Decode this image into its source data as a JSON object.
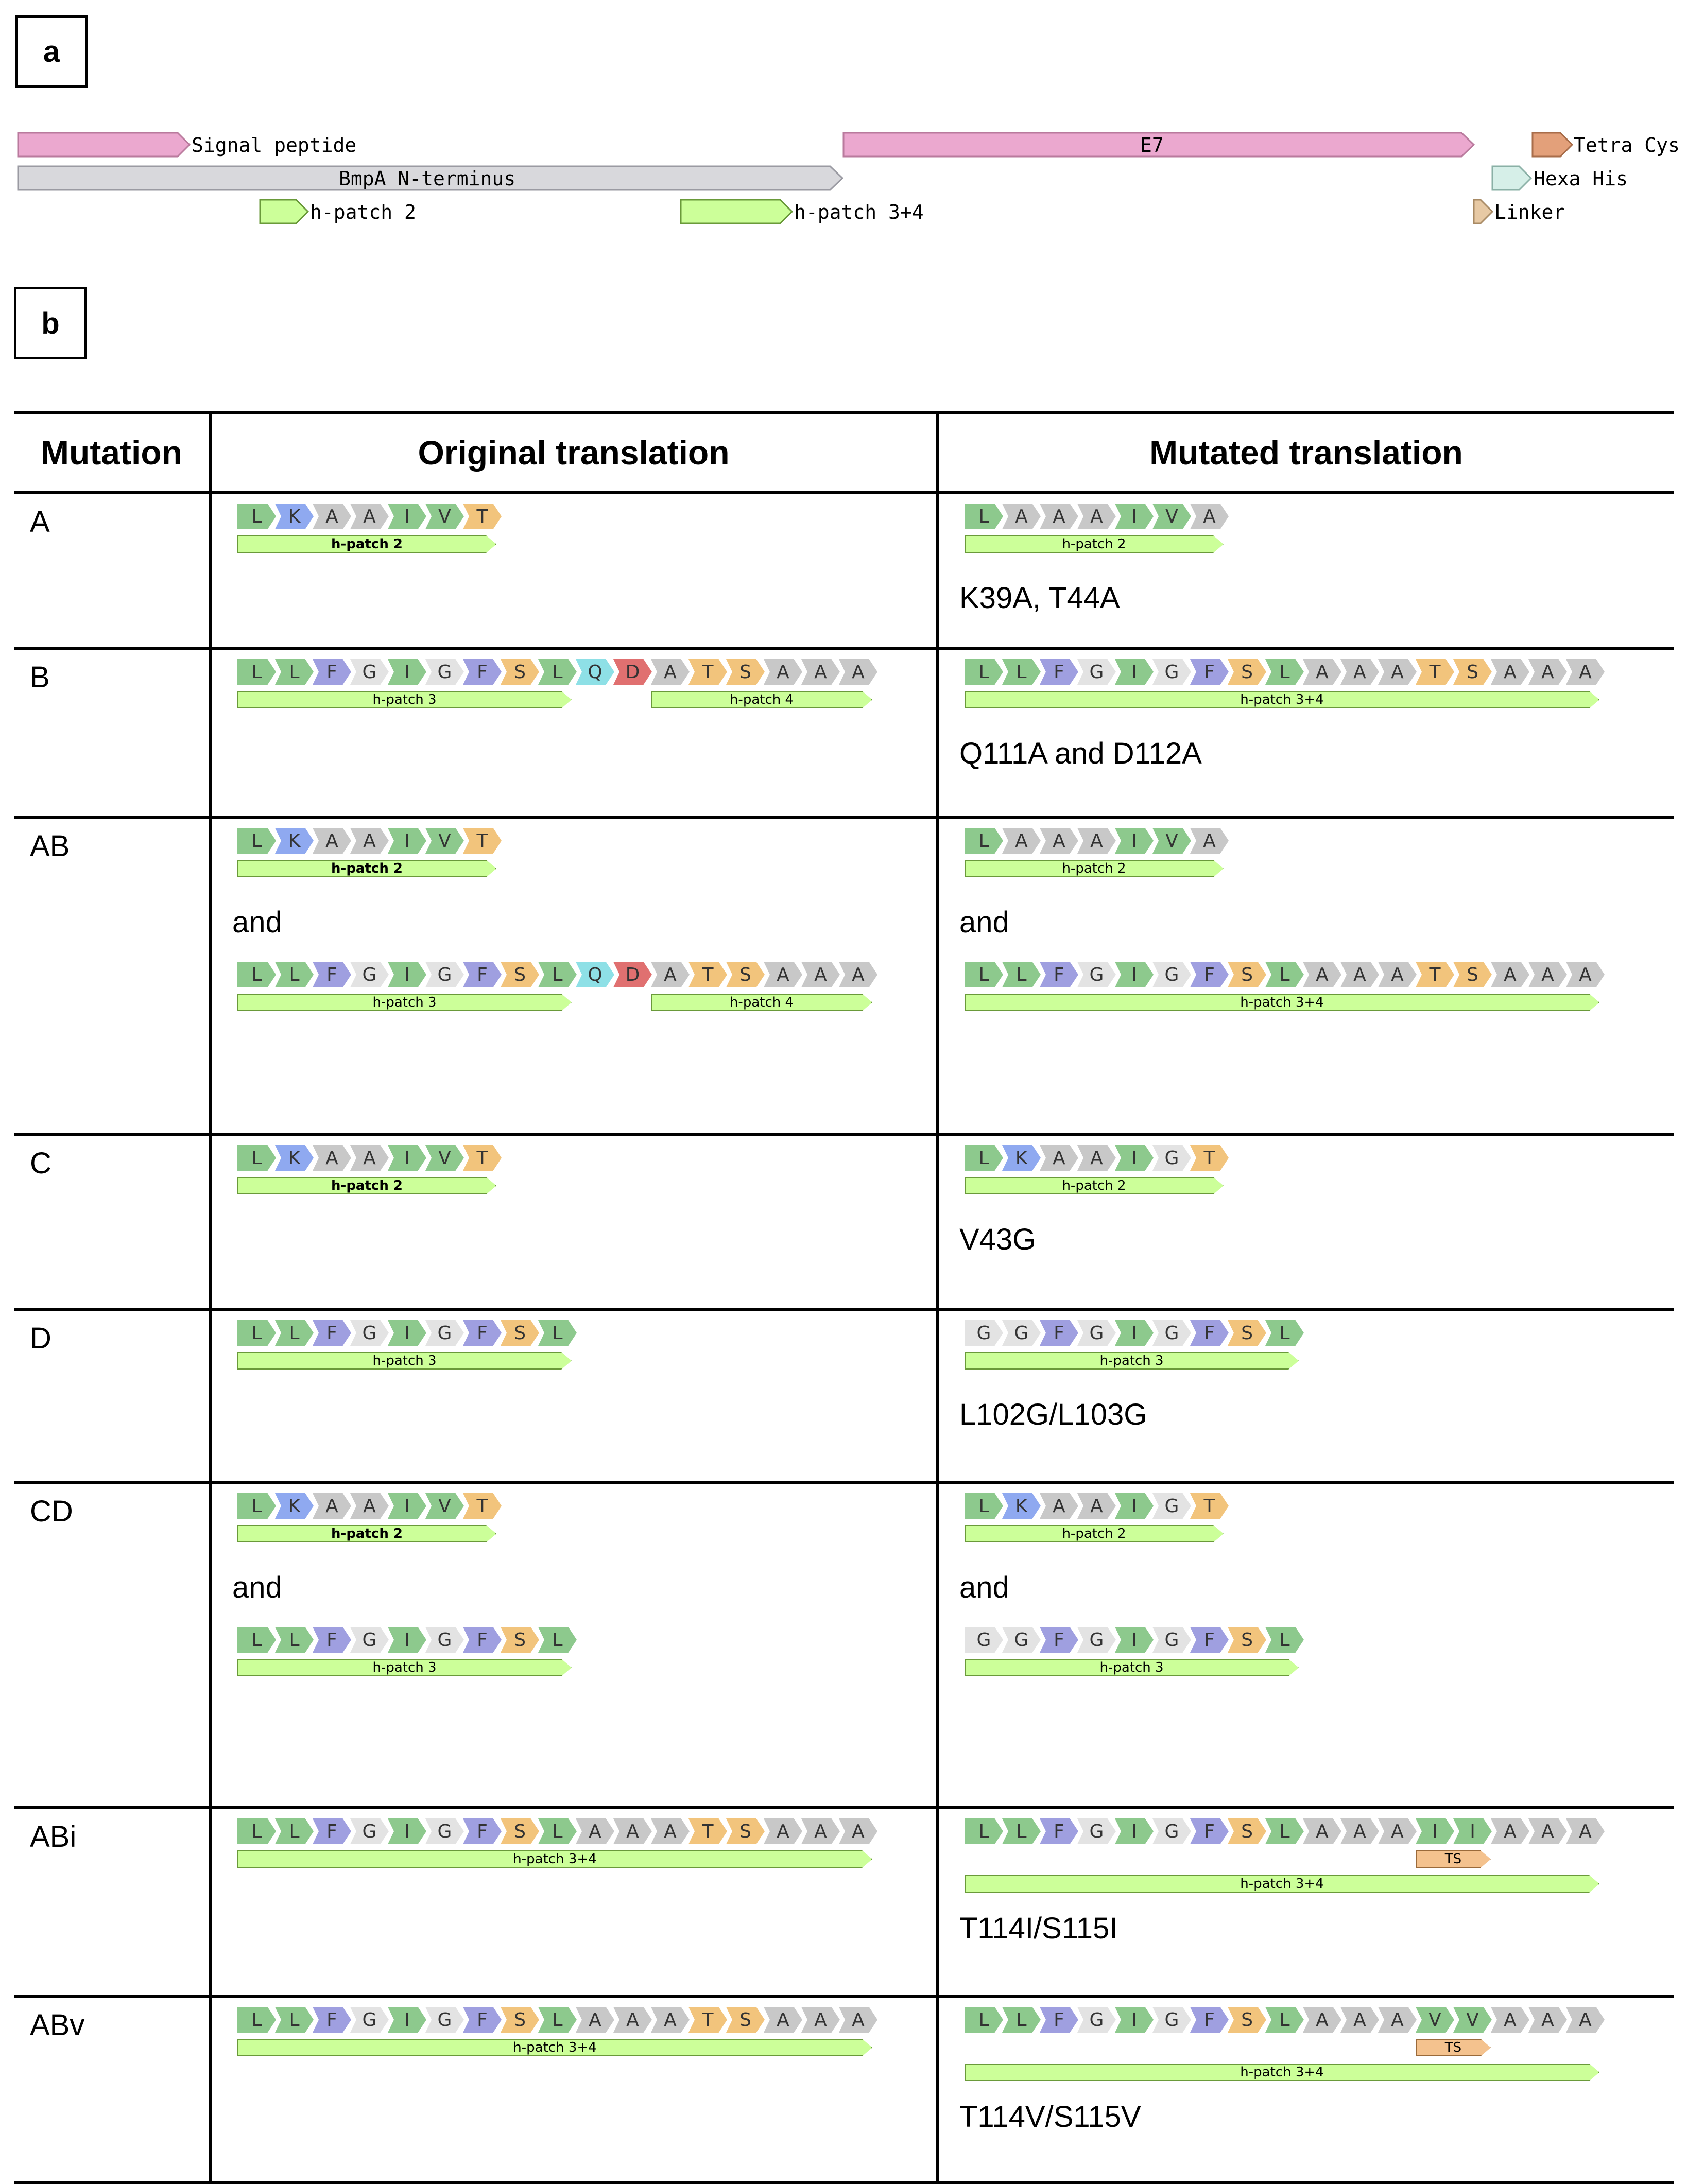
{
  "panel_a": {
    "label": "a"
  },
  "panel_b": {
    "label": "b"
  },
  "map": {
    "signal_peptide": "Signal peptide",
    "bmpa": "BmpA N-terminus",
    "hpatch2": "h-patch 2",
    "hpatch34": "h-patch 3+4",
    "e7": "E7",
    "tetra_cys": "Tetra Cys",
    "hexa_his": "Hexa His",
    "linker": "Linker"
  },
  "colors": {
    "L": "#8dc98d",
    "K": "#8fa9f0",
    "A": "#c8c8c8",
    "I": "#8dc98d",
    "V": "#8dc98d",
    "T": "#f2c47c",
    "F": "#9f9fe0",
    "G": "#e3e3e3",
    "S": "#f2c47c",
    "Q": "#8ee0e6",
    "D": "#e07070"
  },
  "table": {
    "headers": [
      "Mutation",
      "Original translation",
      "Mutated translation"
    ],
    "rows": [
      {
        "code": "A",
        "orig": [
          {
            "seq": "LKAAIVT",
            "labels": [
              {
                "text": "h-patch 2",
                "start": 0,
                "len": 7,
                "bold": true
              }
            ]
          }
        ],
        "mut": [
          {
            "seq": "LAAAIVA",
            "labels": [
              {
                "text": "h-patch 2",
                "start": 0,
                "len": 7
              }
            ]
          }
        ],
        "note": "K39A, T44A"
      },
      {
        "code": "B",
        "orig": [
          {
            "seq": "LLFGIGFSLQDATSAAA",
            "labels": [
              {
                "text": "h-patch 3",
                "start": 0,
                "len": 9
              },
              {
                "text": "h-patch 4",
                "start": 11,
                "len": 6
              }
            ]
          }
        ],
        "mut": [
          {
            "seq": "LLFGIGFSLAAATSAAA",
            "labels": [
              {
                "text": "h-patch 3+4",
                "start": 0,
                "len": 17
              }
            ]
          }
        ],
        "note": "Q111A and D112A"
      },
      {
        "code": "AB",
        "orig": [
          {
            "seq": "LKAAIVT",
            "labels": [
              {
                "text": "h-patch 2",
                "start": 0,
                "len": 7,
                "bold": true
              }
            ]
          },
          {
            "seq": "LLFGIGFSLQDATSAAA",
            "labels": [
              {
                "text": "h-patch 3",
                "start": 0,
                "len": 9
              },
              {
                "text": "h-patch 4",
                "start": 11,
                "len": 6
              }
            ]
          }
        ],
        "mut": [
          {
            "seq": "LAAAIVA",
            "labels": [
              {
                "text": "h-patch 2",
                "start": 0,
                "len": 7
              }
            ]
          },
          {
            "seq": "LLFGIGFSLAAATSAAA",
            "labels": [
              {
                "text": "h-patch 3+4",
                "start": 0,
                "len": 17
              }
            ]
          }
        ],
        "and": "and"
      },
      {
        "code": "C",
        "orig": [
          {
            "seq": "LKAAIVT",
            "labels": [
              {
                "text": "h-patch 2",
                "start": 0,
                "len": 7,
                "bold": true
              }
            ]
          }
        ],
        "mut": [
          {
            "seq": "LKAAIGT",
            "labels": [
              {
                "text": "h-patch 2",
                "start": 0,
                "len": 7
              }
            ]
          }
        ],
        "note": "V43G"
      },
      {
        "code": "D",
        "orig": [
          {
            "seq": "LLFGIGFSL",
            "labels": [
              {
                "text": "h-patch 3",
                "start": 0,
                "len": 9
              }
            ]
          }
        ],
        "mut": [
          {
            "seq": "GGFGIGFSL",
            "labels": [
              {
                "text": "h-patch 3",
                "start": 0,
                "len": 9
              }
            ]
          }
        ],
        "note": "L102G/L103G"
      },
      {
        "code": "CD",
        "orig": [
          {
            "seq": "LKAAIVT",
            "labels": [
              {
                "text": "h-patch 2",
                "start": 0,
                "len": 7,
                "bold": true
              }
            ]
          },
          {
            "seq": "LLFGIGFSL",
            "labels": [
              {
                "text": "h-patch 3",
                "start": 0,
                "len": 9
              }
            ]
          }
        ],
        "mut": [
          {
            "seq": "LKAAIGT",
            "labels": [
              {
                "text": "h-patch 2",
                "start": 0,
                "len": 7
              }
            ]
          },
          {
            "seq": "GGFGIGFSL",
            "labels": [
              {
                "text": "h-patch 3",
                "start": 0,
                "len": 9
              }
            ]
          }
        ],
        "and": "and"
      },
      {
        "code": "ABi",
        "orig": [
          {
            "seq": "LLFGIGFSLAAATSAAA",
            "labels": [
              {
                "text": "h-patch 3+4",
                "start": 0,
                "len": 17
              }
            ]
          }
        ],
        "mut": [
          {
            "seq": "LLFGIGFSLAAAIIAAA",
            "labels": [
              {
                "text": "h-patch 3+4",
                "start": 0,
                "len": 17
              }
            ],
            "ts": {
              "text": "TS",
              "start": 12,
              "len": 2
            }
          }
        ],
        "note": "T114I/S115I"
      },
      {
        "code": "ABv",
        "orig": [
          {
            "seq": "LLFGIGFSLAAATSAAA",
            "labels": [
              {
                "text": "h-patch 3+4",
                "start": 0,
                "len": 17
              }
            ]
          }
        ],
        "mut": [
          {
            "seq": "LLFGIGFSLAAAVVAAA",
            "labels": [
              {
                "text": "h-patch 3+4",
                "start": 0,
                "len": 17
              }
            ],
            "ts": {
              "text": "TS",
              "start": 12,
              "len": 2
            }
          }
        ],
        "note": "T114V/S115V"
      }
    ]
  }
}
